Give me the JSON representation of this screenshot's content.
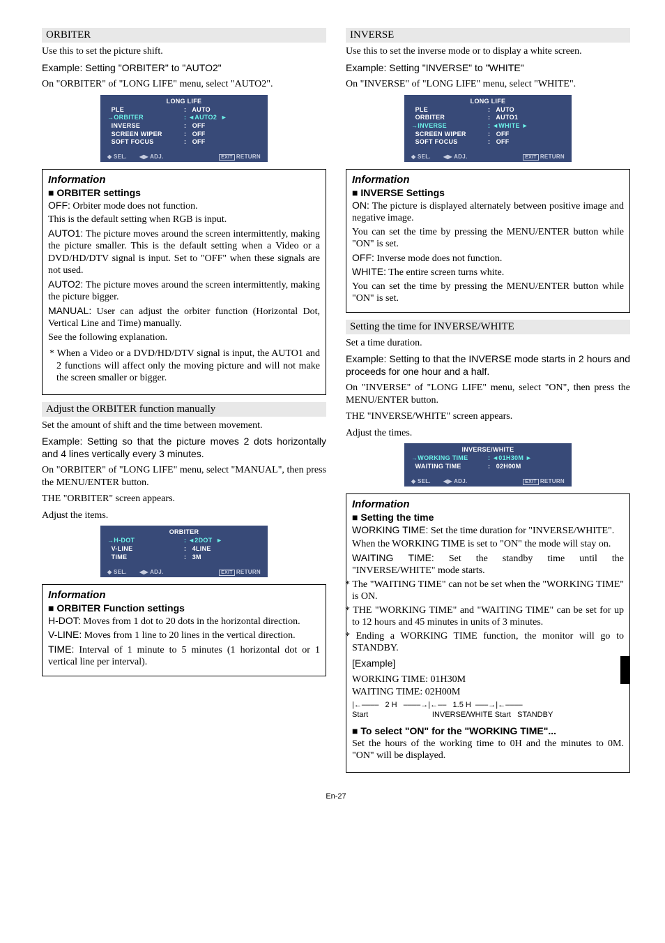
{
  "page_footer": "En-27",
  "left": {
    "orbiter": {
      "header": "ORBITER",
      "p1": "Use this to set the picture shift.",
      "p2": "Example: Setting \"ORBITER\" to \"AUTO2\"",
      "p3": "On \"ORBITER\" of \"LONG LIFE\" menu, select \"AUTO2\".",
      "osd": {
        "title": "LONG LIFE",
        "rows": [
          {
            "l": "  PLE",
            "r": ":   AUTO",
            "hl": false
          },
          {
            "l": "→ORBITER",
            "r": ": ◄AUTO2  ►",
            "hl": true
          },
          {
            "l": "  INVERSE",
            "r": ":   OFF",
            "hl": false
          },
          {
            "l": "  SCREEN WIPER",
            "r": ":   OFF",
            "hl": false
          },
          {
            "l": "  SOFT FOCUS",
            "r": ":   OFF",
            "hl": false
          }
        ],
        "foot": [
          "◆ SEL.",
          "◀▶ ADJ.",
          "EXIT RETURN"
        ]
      },
      "info": {
        "title": "Information",
        "sub": "ORBITER settings",
        "body": [
          {
            "t": "OFF:",
            "d": " Orbiter mode does not function."
          },
          {
            "plain": "This is the default setting when RGB is input."
          },
          {
            "t": "AUTO1:",
            "d": " The picture moves around the screen intermittently, making the picture smaller. This is the default setting when a Video or a DVD/HD/DTV signal is input. Set to \"OFF\" when these signals are not used."
          },
          {
            "t": "AUTO2:",
            "d": " The picture moves around the screen intermittently, making the picture bigger."
          },
          {
            "t": "MANUAL:",
            "d": " User can adjust the orbiter function (Horizontal Dot, Vertical Line and Time) manually."
          },
          {
            "plain": "See the following explanation."
          }
        ],
        "note": "* When a Video or a DVD/HD/DTV signal is input, the AUTO1 and 2 functions will affect only the moving picture and will not make the screen smaller or bigger."
      },
      "adjust": {
        "header": "Adjust the ORBITER function manually",
        "p1": "Set the amount of shift and the time between movement.",
        "p2": "Example: Setting so that the picture moves 2 dots horizontally and 4 lines vertically every 3 minutes.",
        "p3": "On \"ORBITER\" of \"LONG LIFE\" menu, select \"MANUAL\", then press the MENU/ENTER button.",
        "p4": "THE \"ORBITER\" screen appears.",
        "p5": "Adjust the items.",
        "osd": {
          "title": "ORBITER",
          "rows": [
            {
              "l": "→H-DOT",
              "r": ": ◄2DOT  ►",
              "hl": true
            },
            {
              "l": "  V-LINE",
              "r": ":   4LINE",
              "hl": false
            },
            {
              "l": "  TIME",
              "r": ":   3M",
              "hl": false
            }
          ],
          "foot": [
            "◆ SEL.",
            "◀▶ ADJ.",
            "EXIT RETURN"
          ]
        }
      },
      "funcinfo": {
        "title": "Information",
        "sub": "ORBITER Function settings",
        "body": [
          {
            "t": "H-DOT:",
            "d": " Moves from 1 dot to 20 dots in the horizontal direction."
          },
          {
            "t": "V-LINE:",
            "d": " Moves from 1 line to 20 lines in the vertical direction."
          },
          {
            "t": "TIME:",
            "d": " Interval of 1 minute to 5 minutes (1 horizontal dot or 1 vertical line per interval)."
          }
        ]
      }
    }
  },
  "right": {
    "inverse": {
      "header": "INVERSE",
      "p1": "Use this to set the inverse mode or to display a white screen.",
      "p2": "Example: Setting \"INVERSE\" to \"WHITE\"",
      "p3": "On \"INVERSE\" of \"LONG LIFE\" menu, select \"WHITE\".",
      "osd": {
        "title": "LONG LIFE",
        "rows": [
          {
            "l": "  PLE",
            "r": ":   AUTO",
            "hl": false
          },
          {
            "l": "  ORBITER",
            "r": ":   AUTO1",
            "hl": false
          },
          {
            "l": "→INVERSE",
            "r": ": ◄WHITE ►",
            "hl": true
          },
          {
            "l": "  SCREEN WIPER",
            "r": ":   OFF",
            "hl": false
          },
          {
            "l": "  SOFT FOCUS",
            "r": ":   OFF",
            "hl": false
          }
        ],
        "foot": [
          "◆ SEL.",
          "◀▶ ADJ.",
          "EXIT RETURN"
        ]
      },
      "info": {
        "title": "Information",
        "sub": "INVERSE Settings",
        "body": [
          {
            "t": "ON:",
            "d": " The picture is displayed alternately between positive image and negative image."
          },
          {
            "plain": "You can set the time by pressing the MENU/ENTER button while \"ON\" is set."
          },
          {
            "t": "OFF:",
            "d": " Inverse mode does not function."
          },
          {
            "t": "WHITE:",
            "d": " The entire screen turns white."
          },
          {
            "plain": "You can set the time by pressing the MENU/ENTER button while \"ON\" is set."
          }
        ]
      },
      "timing": {
        "header": "Setting the time for INVERSE/WHITE",
        "p1": "Set a time duration.",
        "p2": "Example: Setting to that the INVERSE mode starts in 2 hours and proceeds for one hour and a half.",
        "p3": "On \"INVERSE\" of \"LONG LIFE\" menu, select \"ON\", then press the MENU/ENTER button.",
        "p4": "THE \"INVERSE/WHITE\" screen appears.",
        "p5": "Adjust the times.",
        "osd": {
          "title": "INVERSE/WHITE",
          "rows": [
            {
              "l": "→WORKING TIME",
              "r": ": ◄01H30M ►",
              "hl": true
            },
            {
              "l": "  WAITING TIME",
              "r": ":   02H00M",
              "hl": false
            }
          ],
          "foot": [
            "◆ SEL.",
            "◀▶ ADJ.",
            "EXIT RETURN"
          ]
        }
      },
      "timeinfo": {
        "title": "Information",
        "sub": "Setting the time",
        "body": [
          {
            "t": "WORKING TIME:",
            "d": " Set the time duration for \"INVERSE/WHITE\"."
          },
          {
            "plain": "When the WORKING TIME is set to \"ON\" the mode will stay on."
          },
          {
            "t": "WAITING TIME:",
            "d": " Set the standby time until the \"INVERSE/WHITE\" mode starts."
          }
        ],
        "notes": [
          "* The \"WAITING TIME\" can not be set when the \"WORKING TIME\" is ON.",
          "* THE \"WORKING TIME\" and \"WAITING TIME\" can be set for up to 12 hours and 45 minutes in units of 3 minutes.",
          "* Ending a WORKING TIME function, the monitor will go to STANDBY."
        ],
        "example_label": "[Example]",
        "ex_working": "WORKING TIME: 01H30M",
        "ex_waiting": "WAITING TIME:   02H00M",
        "timeline_top": "|←––––   2 H   ––––→|←––   1.5 H  –––→|←––––",
        "timeline_bot": "Start                              INVERSE/WHITE Start   STANDBY",
        "sub2": "To select \"ON\" for the \"WORKING TIME\"...",
        "sub2_body": "Set the hours of the working time to 0H and the minutes to 0M. \"ON\" will be displayed."
      }
    }
  }
}
